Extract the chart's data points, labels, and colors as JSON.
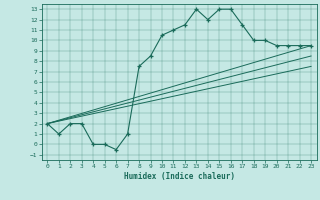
{
  "title": "",
  "xlabel": "Humidex (Indice chaleur)",
  "bg_color": "#c5e8e4",
  "line_color": "#1a6b5a",
  "xlim": [
    -0.5,
    23.5
  ],
  "ylim": [
    -1.5,
    13.5
  ],
  "xticks": [
    0,
    1,
    2,
    3,
    4,
    5,
    6,
    7,
    8,
    9,
    10,
    11,
    12,
    13,
    14,
    15,
    16,
    17,
    18,
    19,
    20,
    21,
    22,
    23
  ],
  "yticks": [
    -1,
    0,
    1,
    2,
    3,
    4,
    5,
    6,
    7,
    8,
    9,
    10,
    11,
    12,
    13
  ],
  "curve_x": [
    0,
    1,
    2,
    3,
    4,
    5,
    6,
    7,
    8,
    9,
    10,
    11,
    12,
    13,
    14,
    15,
    16,
    17,
    18,
    19,
    20,
    21,
    22,
    23
  ],
  "curve_y": [
    2,
    1,
    2,
    2,
    0,
    0,
    -0.5,
    1,
    7.5,
    8.5,
    10.5,
    11,
    11.5,
    13,
    12,
    13,
    13,
    11.5,
    10,
    10,
    9.5,
    9.5,
    9.5,
    9.5
  ],
  "line1_x": [
    0,
    23
  ],
  "line1_y": [
    2,
    7.5
  ],
  "line2_x": [
    0,
    23
  ],
  "line2_y": [
    2,
    8.5
  ],
  "line3_x": [
    0,
    23
  ],
  "line3_y": [
    2,
    9.5
  ]
}
